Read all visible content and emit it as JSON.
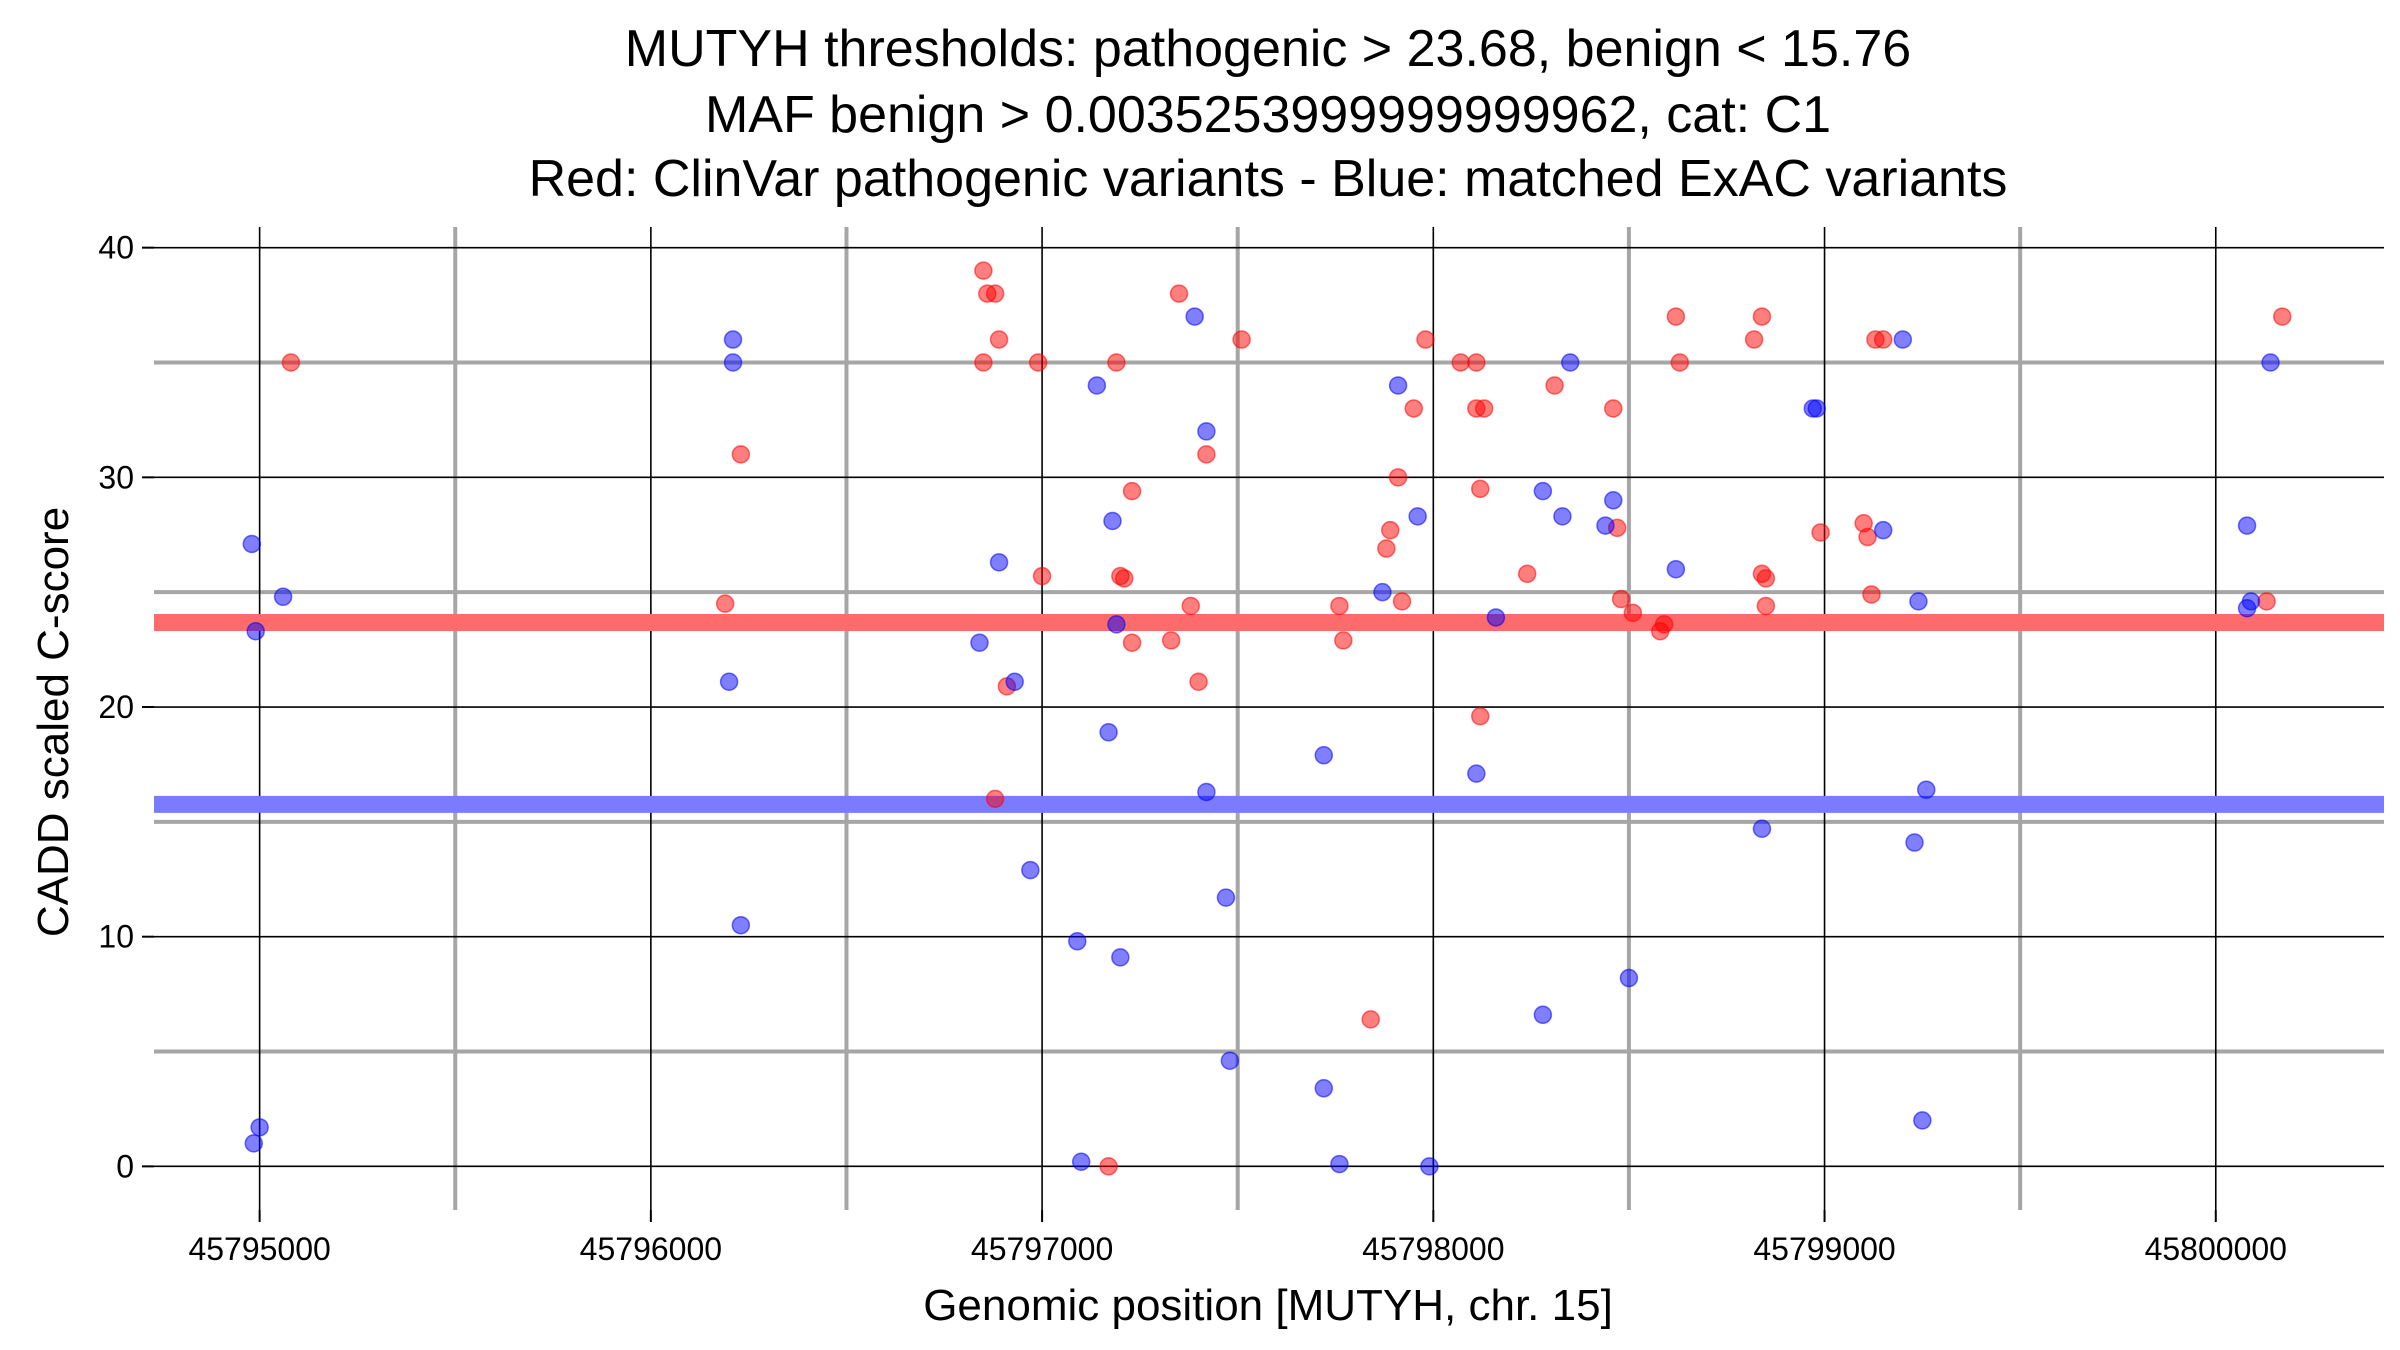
{
  "chart_data": {
    "type": "scatter",
    "title": [
      "MUTYH thresholds: pathogenic > 23.68, benign < 15.76",
      "MAF benign > 0.0035253999999999962, cat: C1",
      "Red: ClinVar pathogenic variants - Blue: matched ExAC variants"
    ],
    "xlabel": "Genomic position [MUTYH, chr. 15]",
    "ylabel": "CADD scaled C-score",
    "xlim": [
      45794730,
      45800430
    ],
    "ylim": [
      -1.9,
      40.9
    ],
    "x_ticks": [
      45795000,
      45796000,
      45797000,
      45798000,
      45799000,
      45800000
    ],
    "x_tick_labels": [
      "45795000",
      "45796000",
      "45797000",
      "45798000",
      "45799000",
      "45800000"
    ],
    "y_ticks": [
      0,
      10,
      20,
      30,
      40
    ],
    "y_tick_labels": [
      "0",
      "10",
      "20",
      "30",
      "40"
    ],
    "thresholds": [
      {
        "name": "pathogenic",
        "value": 23.68,
        "color": "#ff6b6b"
      },
      {
        "name": "benign",
        "value": 15.76,
        "color": "#7b7bff"
      }
    ],
    "colors": {
      "pathogenic": "#ff0000",
      "benign": "#0000ff",
      "major_grid": "#000000",
      "minor_grid": "#a6a6a6"
    },
    "series": [
      {
        "name": "ClinVar pathogenic variants",
        "color": "#ff0000",
        "points": [
          [
            45795080,
            35
          ],
          [
            45796190,
            24.5
          ],
          [
            45796230,
            31
          ],
          [
            45796850,
            39
          ],
          [
            45796850,
            35
          ],
          [
            45796860,
            38
          ],
          [
            45796880,
            38
          ],
          [
            45796890,
            36
          ],
          [
            45796880,
            16
          ],
          [
            45796910,
            20.9
          ],
          [
            45796990,
            35
          ],
          [
            45797000,
            25.7
          ],
          [
            45797170,
            0
          ],
          [
            45797190,
            35
          ],
          [
            45797200,
            25.7
          ],
          [
            45797210,
            25.6
          ],
          [
            45797230,
            29.4
          ],
          [
            45797230,
            22.8
          ],
          [
            45797330,
            22.9
          ],
          [
            45797350,
            38
          ],
          [
            45797380,
            24.4
          ],
          [
            45797400,
            21.1
          ],
          [
            45797420,
            31
          ],
          [
            45797510,
            36
          ],
          [
            45797760,
            24.4
          ],
          [
            45797770,
            22.9
          ],
          [
            45797840,
            6.4
          ],
          [
            45797880,
            26.9
          ],
          [
            45797890,
            27.7
          ],
          [
            45797910,
            30
          ],
          [
            45797920,
            24.6
          ],
          [
            45797950,
            33
          ],
          [
            45797980,
            36
          ],
          [
            45798070,
            35
          ],
          [
            45798110,
            35
          ],
          [
            45798110,
            33
          ],
          [
            45798130,
            33
          ],
          [
            45798120,
            29.5
          ],
          [
            45798120,
            19.6
          ],
          [
            45798240,
            25.8
          ],
          [
            45798310,
            34
          ],
          [
            45798460,
            33
          ],
          [
            45798470,
            27.8
          ],
          [
            45798480,
            24.7
          ],
          [
            45798510,
            24.1
          ],
          [
            45798580,
            23.3
          ],
          [
            45798590,
            23.6
          ],
          [
            45798620,
            37
          ],
          [
            45798630,
            35
          ],
          [
            45798820,
            36
          ],
          [
            45798840,
            37
          ],
          [
            45798840,
            25.8
          ],
          [
            45798850,
            25.6
          ],
          [
            45798850,
            24.4
          ],
          [
            45798990,
            27.6
          ],
          [
            45799100,
            28
          ],
          [
            45799110,
            27.4
          ],
          [
            45799130,
            36
          ],
          [
            45799150,
            36
          ],
          [
            45799120,
            24.9
          ],
          [
            45800130,
            24.6
          ],
          [
            45800170,
            37
          ]
        ]
      },
      {
        "name": "matched ExAC variants",
        "color": "#0000ff",
        "points": [
          [
            45794980,
            27.1
          ],
          [
            45794990,
            23.3
          ],
          [
            45795000,
            1.7
          ],
          [
            45794985,
            1
          ],
          [
            45795060,
            24.8
          ],
          [
            45796210,
            36
          ],
          [
            45796210,
            35
          ],
          [
            45796200,
            21.1
          ],
          [
            45796230,
            10.5
          ],
          [
            45796840,
            22.8
          ],
          [
            45796890,
            26.3
          ],
          [
            45796930,
            21.1
          ],
          [
            45796970,
            12.9
          ],
          [
            45797090,
            9.8
          ],
          [
            45797100,
            0.2
          ],
          [
            45797140,
            34
          ],
          [
            45797170,
            18.9
          ],
          [
            45797180,
            28.1
          ],
          [
            45797190,
            23.6
          ],
          [
            45797200,
            9.1
          ],
          [
            45797390,
            37
          ],
          [
            45797420,
            32
          ],
          [
            45797420,
            16.3
          ],
          [
            45797470,
            11.7
          ],
          [
            45797480,
            4.6
          ],
          [
            45797720,
            17.9
          ],
          [
            45797720,
            3.4
          ],
          [
            45797760,
            0.1
          ],
          [
            45797870,
            25
          ],
          [
            45797910,
            34
          ],
          [
            45797960,
            28.3
          ],
          [
            45797990,
            0
          ],
          [
            45798110,
            17.1
          ],
          [
            45798160,
            23.9
          ],
          [
            45798280,
            29.4
          ],
          [
            45798280,
            6.6
          ],
          [
            45798330,
            28.3
          ],
          [
            45798350,
            35
          ],
          [
            45798440,
            27.9
          ],
          [
            45798460,
            29
          ],
          [
            45798500,
            8.2
          ],
          [
            45798620,
            26
          ],
          [
            45798840,
            14.7
          ],
          [
            45798970,
            33
          ],
          [
            45798980,
            33
          ],
          [
            45799150,
            27.7
          ],
          [
            45799200,
            36
          ],
          [
            45799230,
            14.1
          ],
          [
            45799240,
            24.6
          ],
          [
            45799260,
            16.4
          ],
          [
            45799250,
            2
          ],
          [
            45800080,
            24.3
          ],
          [
            45800090,
            24.6
          ],
          [
            45800080,
            27.9
          ],
          [
            45800140,
            35
          ]
        ]
      }
    ]
  }
}
